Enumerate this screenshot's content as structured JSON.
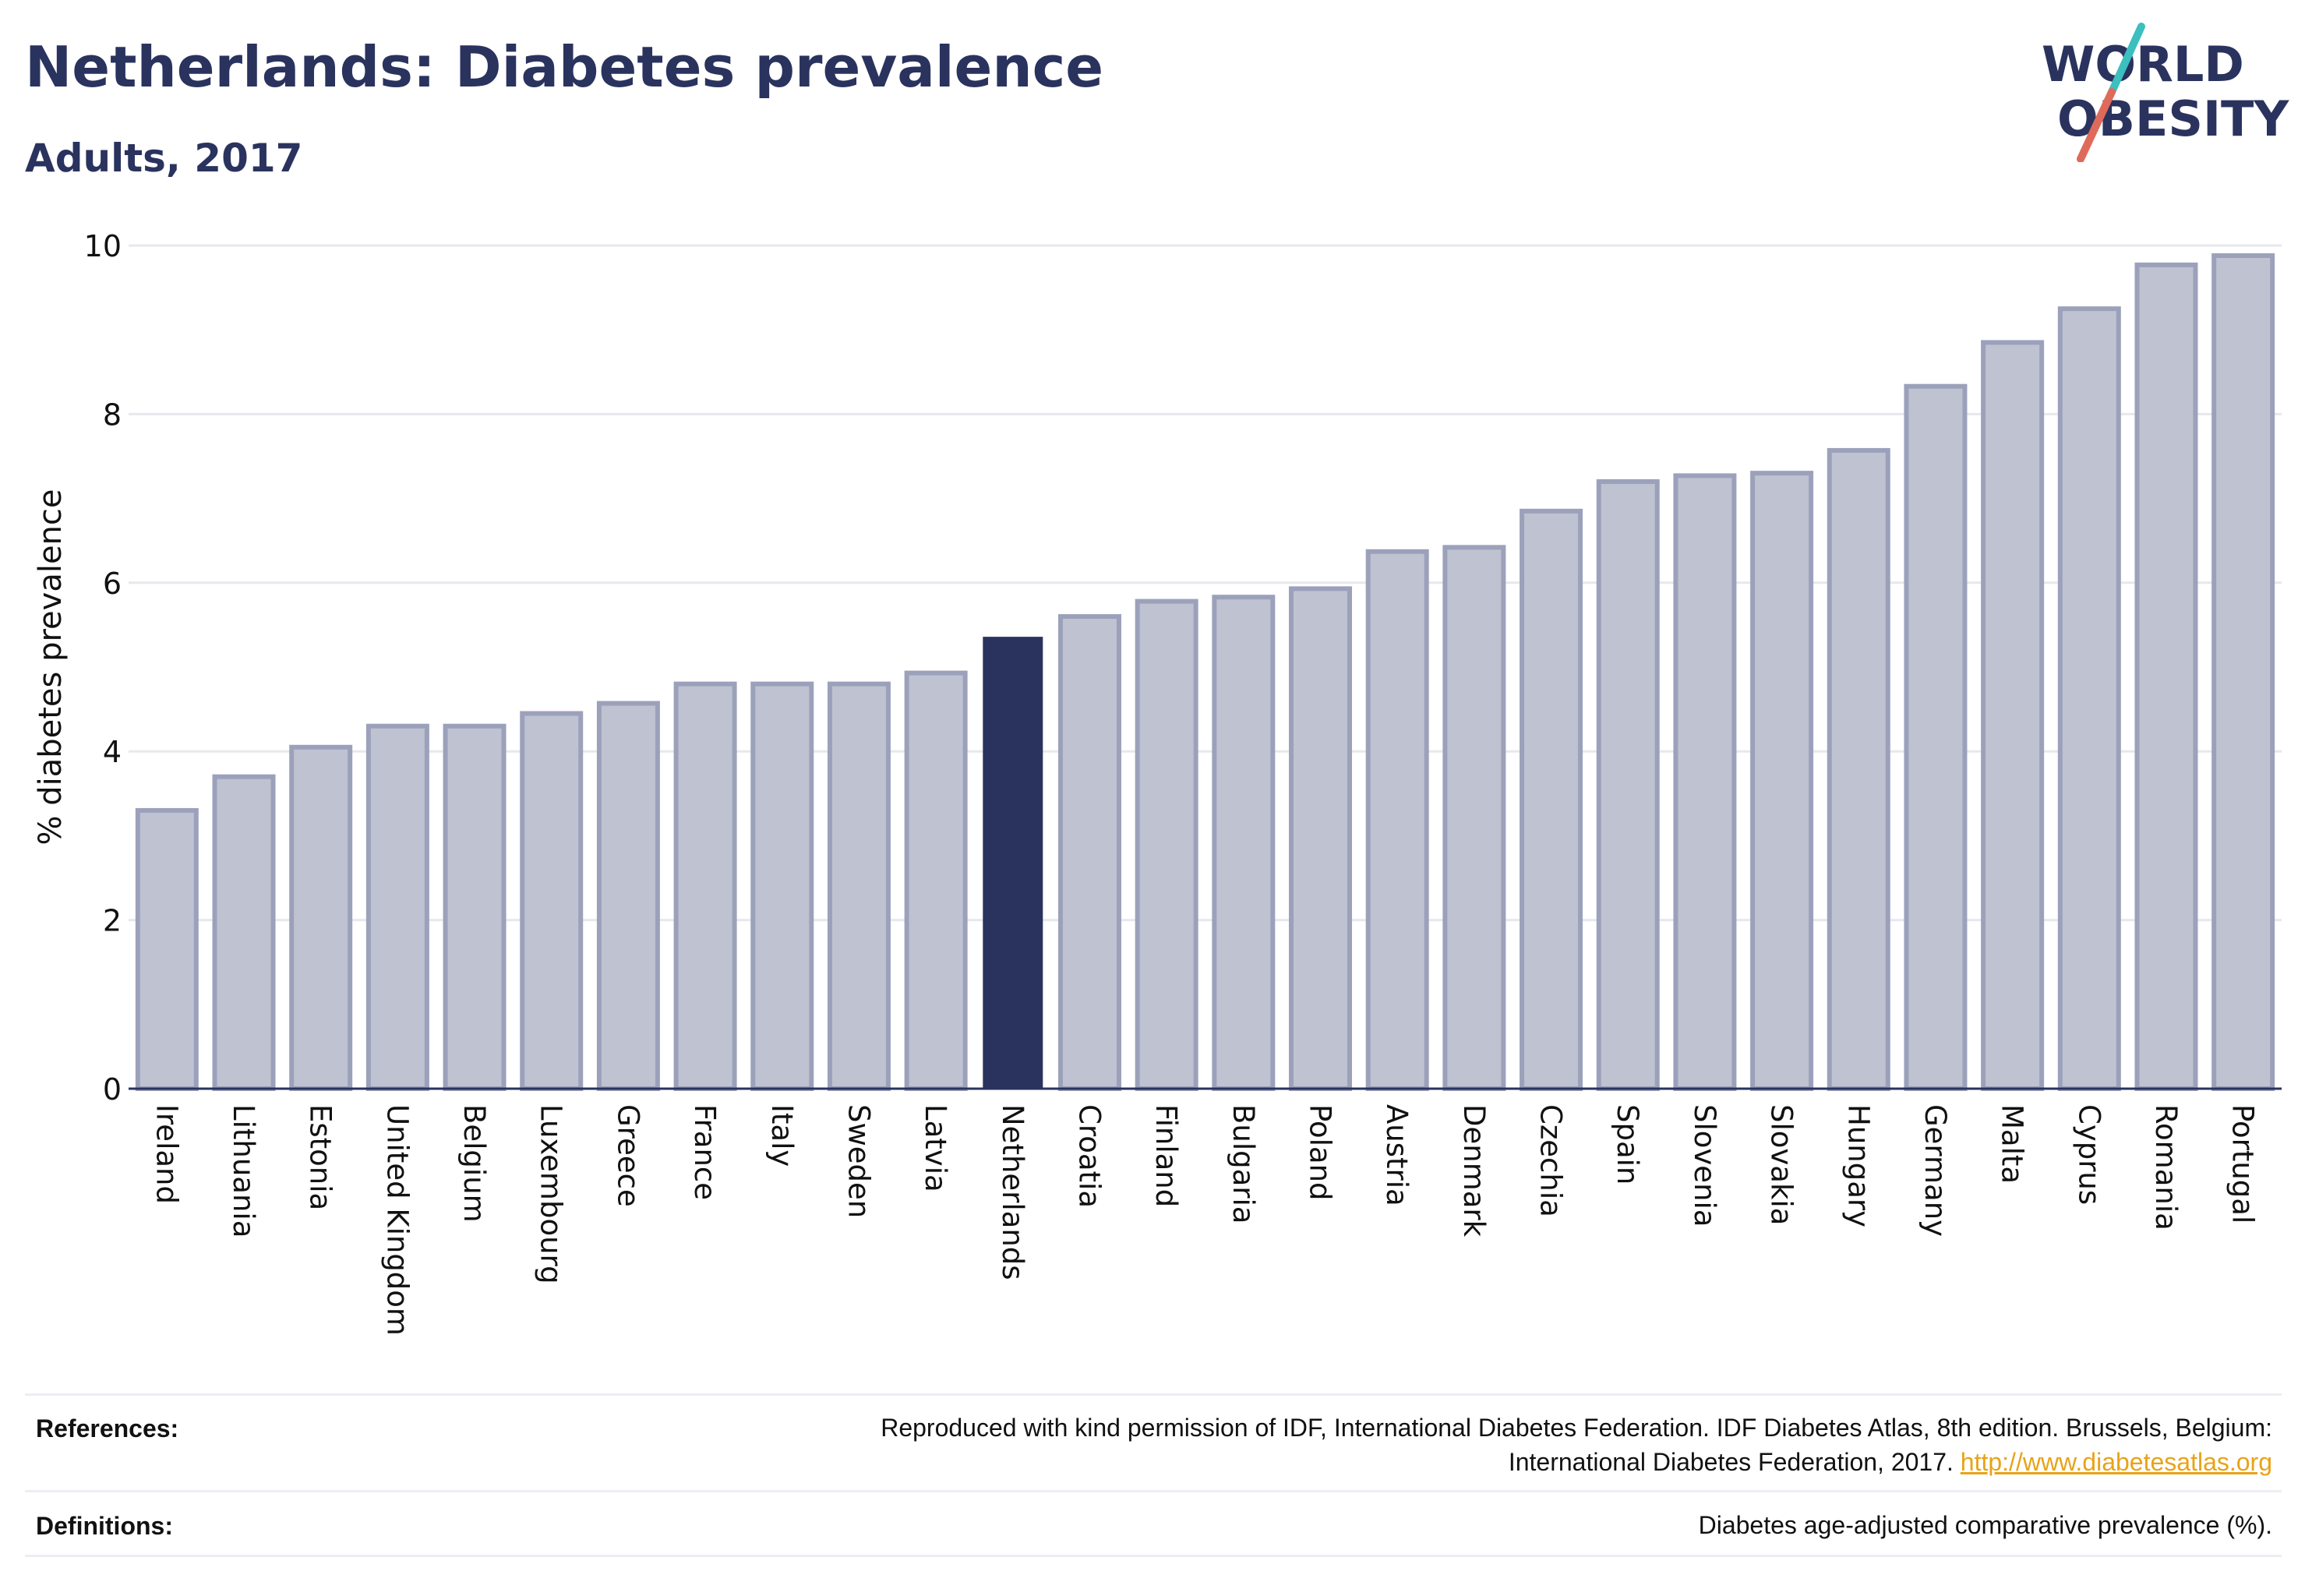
{
  "header": {
    "title": "Netherlands: Diabetes prevalence",
    "subtitle": "Adults, 2017"
  },
  "logo": {
    "line1": "WORLD",
    "line2": "OBESITY",
    "slash_colors": [
      "#3bbfbf",
      "#e06a5a"
    ]
  },
  "colors": {
    "highlight_bar": "#2a335e",
    "other_bar_fill": "#bfc2d0",
    "other_bar_stroke": "#9ca1bb",
    "text": "#2a335e",
    "link": "#e8a317"
  },
  "chart_data": {
    "type": "bar",
    "title": "Netherlands: Diabetes prevalence",
    "subtitle": "Adults, 2017",
    "xlabel": "",
    "ylabel": "% diabetes prevalence",
    "ylim": [
      0,
      10
    ],
    "yticks": [
      0,
      2,
      4,
      6,
      8,
      10
    ],
    "grid": true,
    "highlight": "Netherlands",
    "categories": [
      "Ireland",
      "Lithuania",
      "Estonia",
      "United Kingdom",
      "Belgium",
      "Luxembourg",
      "Greece",
      "France",
      "Italy",
      "Sweden",
      "Latvia",
      "Netherlands",
      "Croatia",
      "Finland",
      "Bulgaria",
      "Poland",
      "Austria",
      "Denmark",
      "Czechia",
      "Spain",
      "Slovenia",
      "Slovakia",
      "Hungary",
      "Germany",
      "Malta",
      "Cyprus",
      "Romania",
      "Portugal"
    ],
    "values": [
      3.3,
      3.7,
      4.05,
      4.3,
      4.3,
      4.45,
      4.57,
      4.8,
      4.8,
      4.8,
      4.93,
      5.35,
      5.6,
      5.78,
      5.83,
      5.93,
      6.37,
      6.42,
      6.85,
      7.2,
      7.27,
      7.3,
      7.57,
      8.33,
      8.85,
      9.25,
      9.77,
      9.88
    ]
  },
  "footer": {
    "references_label": "References:",
    "references_line1": "Reproduced with kind permission of IDF, International Diabetes Federation. IDF Diabetes Atlas, 8th edition. Brussels, Belgium:",
    "references_line2": "International Diabetes Federation, 2017.",
    "references_link": "http://www.diabetesatlas.org",
    "definitions_label": "Definitions:",
    "definitions_text": "Diabetes age-adjusted comparative prevalence (%)."
  }
}
